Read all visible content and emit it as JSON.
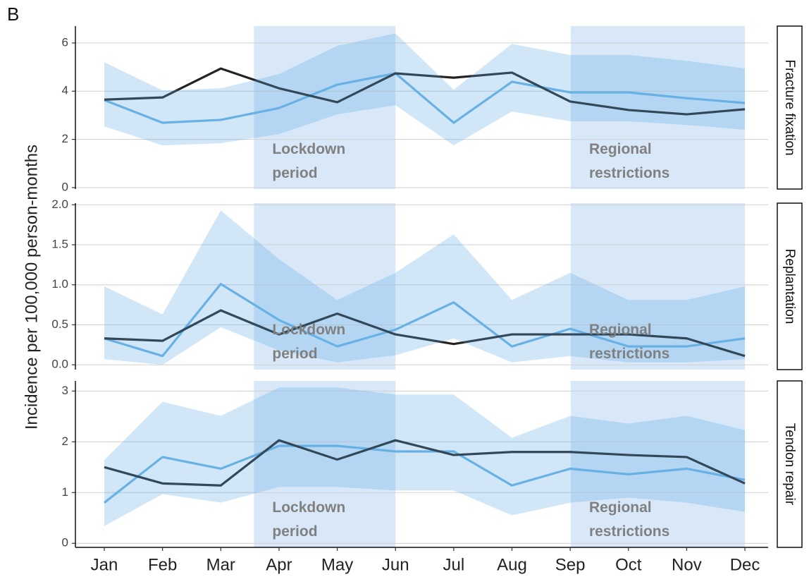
{
  "panel_label": "B",
  "y_label": "Incidence per 100,000 person-months",
  "chart_data": [
    {
      "type": "line",
      "facet": "Fracture fixation",
      "categories": [
        "Jan",
        "Feb",
        "Mar",
        "Apr",
        "May",
        "Jun",
        "Jul",
        "Aug",
        "Sep",
        "Oct",
        "Nov",
        "Dec"
      ],
      "ylim": [
        -0.06,
        6.7
      ],
      "yticks": [
        0,
        2,
        4,
        6
      ],
      "grid": true,
      "spans": [
        {
          "label": [
            "Lockdown",
            "period"
          ],
          "from": 2.57,
          "to": 5,
          "color": "#a9cdef"
        },
        {
          "label": [
            "Regional",
            "restrictions"
          ],
          "from": 8.01,
          "to": 11,
          "color": "#a9cdef"
        }
      ],
      "band": {
        "color": "#5aa8e6",
        "upper": [
          5.2,
          4.03,
          4.12,
          4.71,
          5.88,
          6.4,
          4.06,
          5.96,
          5.5,
          5.5,
          5.26,
          4.94
        ],
        "lower": [
          2.54,
          1.75,
          1.84,
          2.22,
          3.04,
          3.42,
          1.75,
          3.16,
          2.75,
          2.75,
          2.6,
          2.4
        ]
      },
      "series": [
        {
          "color": "#6cb4e4",
          "values": [
            3.63,
            2.69,
            2.81,
            3.3,
            4.27,
            4.74,
            2.69,
            4.39,
            3.95,
            3.95,
            3.71,
            3.51
          ]
        },
        {
          "color": "#232323",
          "values": [
            3.65,
            3.74,
            4.94,
            4.12,
            3.54,
            4.74,
            4.56,
            4.77,
            3.57,
            3.22,
            3.04,
            3.25
          ]
        }
      ]
    },
    {
      "type": "line",
      "facet": "Replantation",
      "categories": [
        "Jan",
        "Feb",
        "Mar",
        "Apr",
        "May",
        "Jun",
        "Jul",
        "Aug",
        "Sep",
        "Oct",
        "Nov",
        "Dec"
      ],
      "ylim": [
        -0.06,
        2.02
      ],
      "yticks": [
        {
          "value": 0,
          "label": "0.0"
        },
        {
          "value": 0.5,
          "label": "0.5"
        },
        {
          "value": 1,
          "label": "1.0"
        },
        {
          "value": 1.5,
          "label": "1.5"
        },
        {
          "value": 2,
          "label": "2.0"
        }
      ],
      "grid": true,
      "spans": [
        {
          "label": [
            "Lockdown",
            "period"
          ],
          "from": 2.57,
          "to": 5,
          "color": "#a9cdef"
        },
        {
          "label": [
            "Regional",
            "restrictions"
          ],
          "from": 8.01,
          "to": 11,
          "color": "#a9cdef"
        }
      ],
      "band": {
        "color": "#5aa8e6",
        "upper": [
          0.98,
          0.63,
          1.93,
          1.32,
          0.81,
          1.15,
          1.63,
          0.81,
          1.15,
          0.81,
          0.81,
          0.98
        ],
        "lower": [
          0.07,
          0,
          0.47,
          0.18,
          0.03,
          0.12,
          0.33,
          0.03,
          0.11,
          0.03,
          0.03,
          0.07
        ]
      },
      "series": [
        {
          "color": "#6cb4e4",
          "values": [
            0.33,
            0.11,
            1.01,
            0.56,
            0.23,
            0.44,
            0.78,
            0.23,
            0.45,
            0.23,
            0.23,
            0.33
          ]
        },
        {
          "color": "#232323",
          "values": [
            0.33,
            0.3,
            0.68,
            0.38,
            0.64,
            0.38,
            0.26,
            0.38,
            0.38,
            0.38,
            0.33,
            0.11
          ]
        }
      ]
    },
    {
      "type": "line",
      "facet": "Tendon repair",
      "categories": [
        "Jan",
        "Feb",
        "Mar",
        "Apr",
        "May",
        "Jun",
        "Jul",
        "Aug",
        "Sep",
        "Oct",
        "Nov",
        "Dec"
      ],
      "ylim": [
        -0.08,
        3.2
      ],
      "yticks": [
        0,
        1,
        2,
        3
      ],
      "grid": true,
      "spans": [
        {
          "label": [
            "Lockdown",
            "period"
          ],
          "from": 2.57,
          "to": 5,
          "color": "#a9cdef"
        },
        {
          "label": [
            "Regional",
            "restrictions"
          ],
          "from": 8.01,
          "to": 11,
          "color": "#a9cdef"
        }
      ],
      "band": {
        "color": "#5aa8e6",
        "upper": [
          1.64,
          2.79,
          2.51,
          3.07,
          3.07,
          2.93,
          2.93,
          2.08,
          2.51,
          2.36,
          2.51,
          2.23
        ],
        "lower": [
          0.34,
          0.97,
          0.8,
          1.11,
          1.11,
          1.04,
          1.04,
          0.55,
          0.8,
          0.9,
          0.8,
          0.62
        ]
      },
      "series": [
        {
          "color": "#6cb4e4",
          "values": [
            0.8,
            1.7,
            1.47,
            1.92,
            1.92,
            1.81,
            1.81,
            1.14,
            1.47,
            1.36,
            1.47,
            1.25
          ]
        },
        {
          "color": "#232323",
          "values": [
            1.5,
            1.18,
            1.14,
            2.03,
            1.65,
            2.03,
            1.74,
            1.8,
            1.8,
            1.74,
            1.7,
            1.18
          ]
        }
      ]
    }
  ]
}
